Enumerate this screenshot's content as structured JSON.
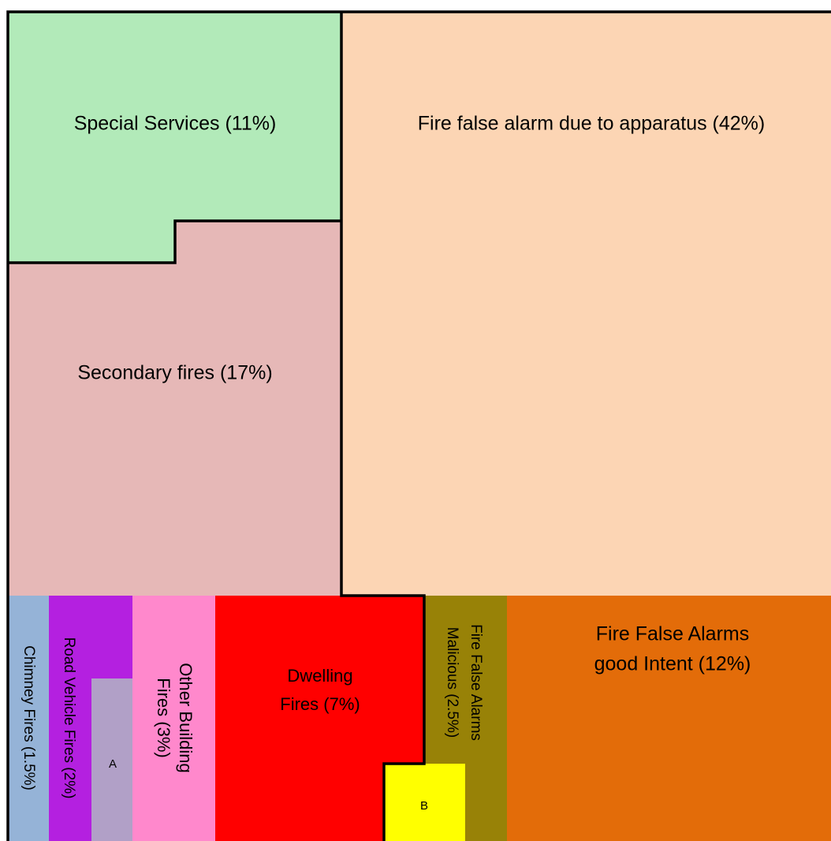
{
  "nodes": [
    {
      "lines": [
        "Special Services (11%)"
      ]
    },
    {
      "lines": [
        "Fire false alarm due to apparatus (42%)"
      ]
    },
    {
      "lines": [
        "Secondary fires  (17%)"
      ]
    },
    {
      "lines": [
        "Chimney Fires (1.5%)"
      ]
    },
    {
      "lines": [
        "Road Vehicle Fires (2%)"
      ]
    },
    {
      "lines": [
        "A"
      ]
    },
    {
      "lines": [
        "Other Building",
        "Fires (3%)"
      ]
    },
    {
      "lines": [
        "Dwelling",
        "Fires (7%)"
      ]
    },
    {
      "lines": [
        "B"
      ]
    },
    {
      "lines": [
        "Fire False Alarms",
        "Malicious (2.5%)"
      ]
    },
    {
      "lines": [
        "Fire False Alarms",
        "good Intent (12%)"
      ]
    }
  ]
}
